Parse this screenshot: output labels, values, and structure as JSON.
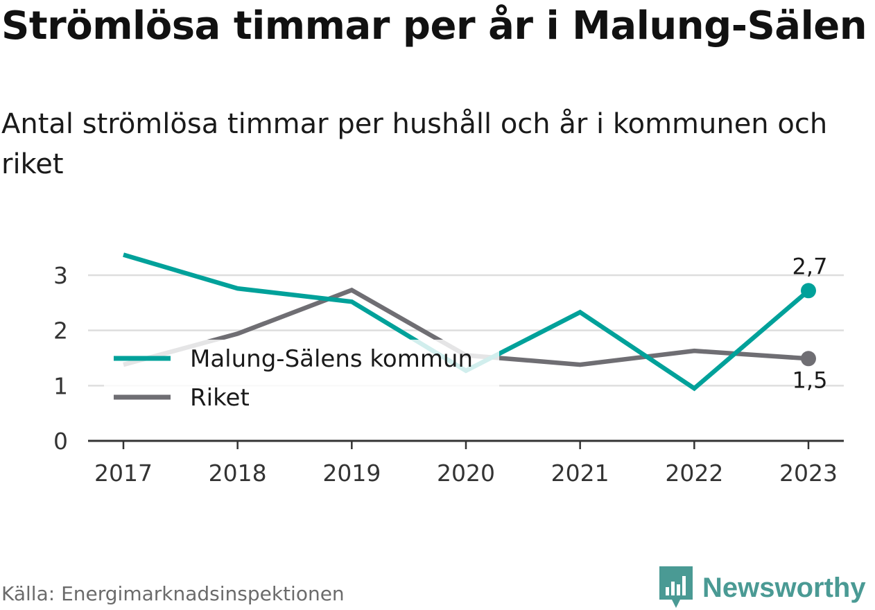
{
  "title": "Strömlösa timmar per år i Malung-Sälen",
  "subtitle": "Antal strömlösa timmar per hushåll och år i kommunen och riket",
  "source": "Källa: Energimarknadsinspektionen",
  "brand": {
    "name": "Newsworthy",
    "icon": "newsworthy-logo-icon",
    "color": "#4a9a94"
  },
  "chart_data": {
    "type": "line",
    "title": "Strömlösa timmar per år i Malung-Sälen",
    "subtitle": "Antal strömlösa timmar per hushåll och år i kommunen och riket",
    "x": [
      "2017",
      "2018",
      "2019",
      "2020",
      "2021",
      "2022",
      "2023"
    ],
    "ylim": [
      0,
      3.4
    ],
    "yticks": [
      "0",
      "1",
      "2",
      "3"
    ],
    "grid": true,
    "legend_position": "left-center",
    "series": [
      {
        "name": "Malung-Sälens kommun",
        "color": "#00a19a",
        "values": [
          3.37,
          2.76,
          2.52,
          1.27,
          2.33,
          0.95,
          2.72
        ],
        "end_label": "2,7"
      },
      {
        "name": "Riket",
        "color": "#6f6e73",
        "values": [
          1.38,
          1.94,
          2.73,
          1.55,
          1.38,
          1.63,
          1.49
        ],
        "end_label": "1,5"
      }
    ]
  }
}
